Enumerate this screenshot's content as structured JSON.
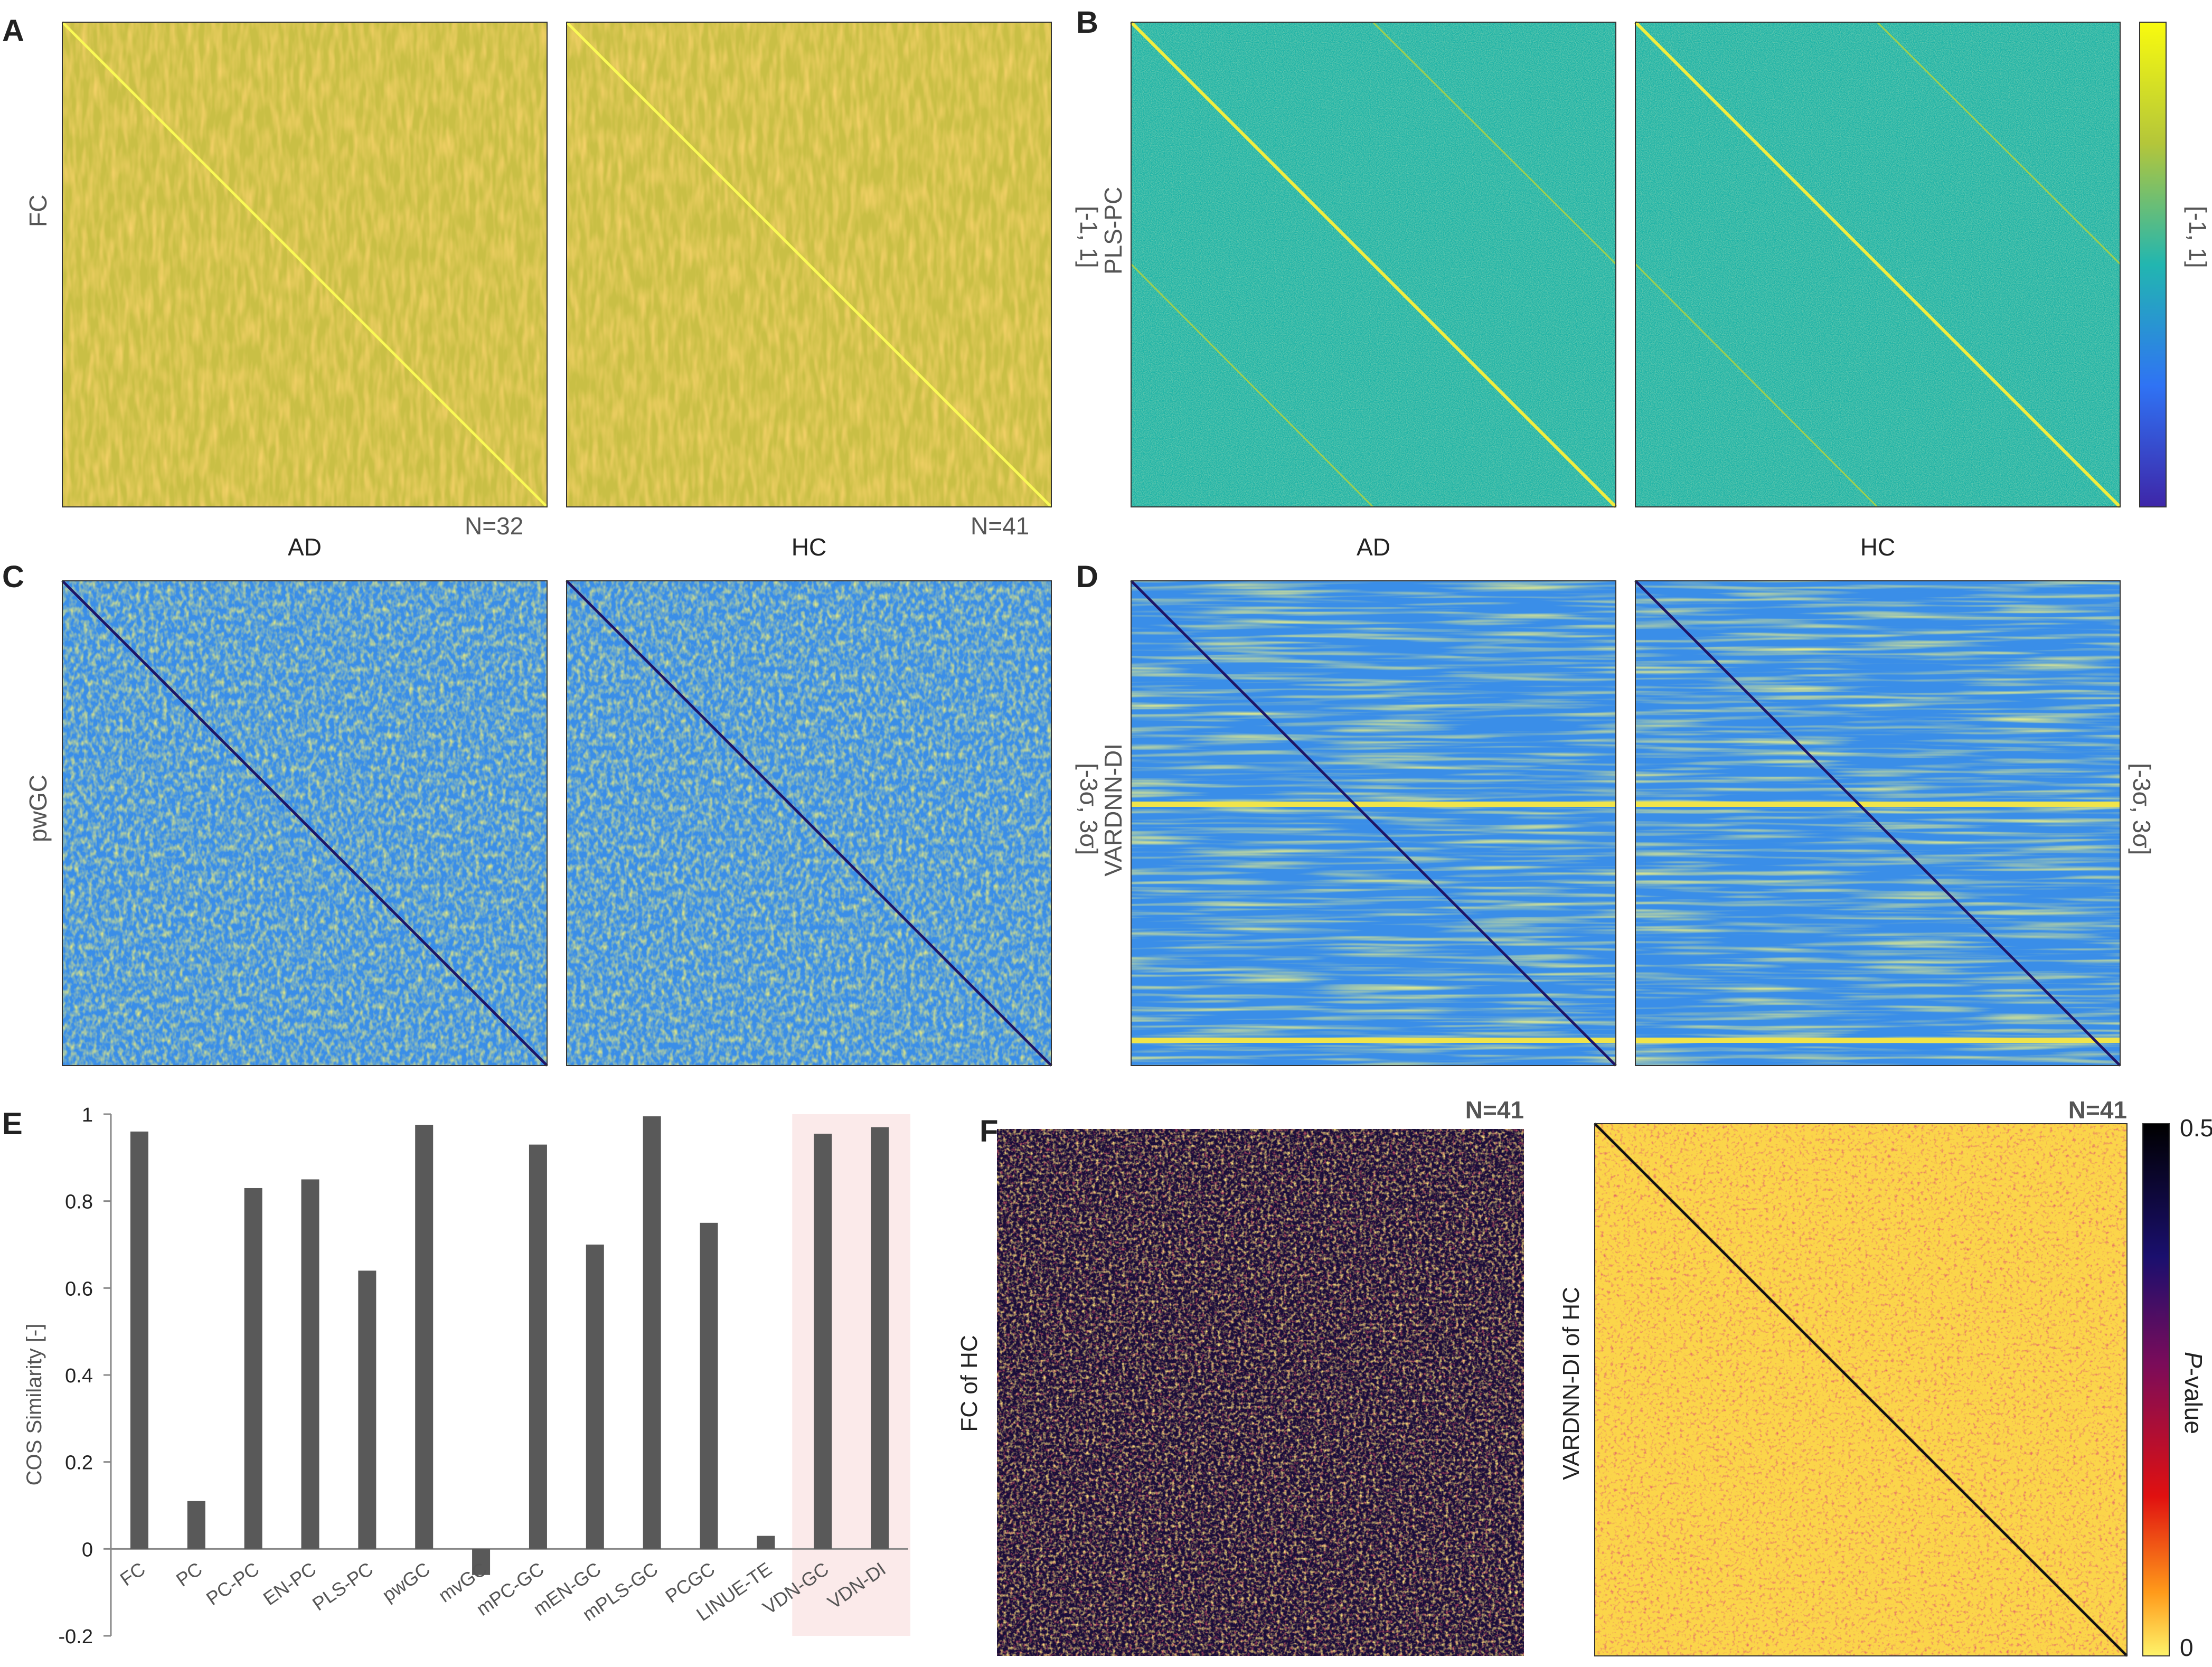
{
  "panels": {
    "A": {
      "letter": "A",
      "ylabel": "FC",
      "left_label": "AD",
      "right_label": "HC",
      "left_n": "N=32",
      "right_n": "N=41",
      "scale_label": "[-1, 1]"
    },
    "B": {
      "letter": "B",
      "ylabel": "PLS-PC",
      "left_label": "AD",
      "right_label": "HC",
      "scale_label": "[-1, 1]"
    },
    "C": {
      "letter": "C",
      "ylabel": "pwGC",
      "scale_label": "[-3σ, 3σ]"
    },
    "D": {
      "letter": "D",
      "ylabel": "VARDNN-DI",
      "scale_label": "[-3σ, 3σ]"
    },
    "E": {
      "letter": "E"
    },
    "F": {
      "letter": "F",
      "left_ylabel": "FC of HC",
      "right_ylabel": "VARDNN-DI of HC",
      "left_n": "N=41",
      "right_n": "N=41",
      "colorbar_max": "0.5",
      "colorbar_min": "0",
      "colorbar_label_italic": "P",
      "colorbar_label_rest": "-value"
    }
  },
  "colors": {
    "bar": "#595959",
    "highlight": "#fbeaea",
    "viridis_low": "#3b2a8f",
    "viridis_mid": "#21b3a0",
    "viridis_high": "#f9e51e"
  },
  "chart_data": {
    "type": "bar",
    "title": "",
    "xlabel": "",
    "ylabel": "COS Similarity [-]",
    "categories": [
      "FC",
      "PC",
      "PC-PC",
      "EN-PC",
      "PLS-PC",
      "pwGC",
      "mvGC",
      "mPC-GC",
      "mEN-GC",
      "mPLS-GC",
      "PCGC",
      "LINUE-TE",
      "VDN-GC",
      "VDN-DI"
    ],
    "values": [
      0.96,
      0.11,
      0.83,
      0.85,
      0.64,
      0.975,
      -0.06,
      0.93,
      0.7,
      0.995,
      0.75,
      0.03,
      0.955,
      0.97
    ],
    "ylim": [
      -0.2,
      1
    ],
    "yticks": [
      "1",
      "0.8",
      "0.6",
      "0.4",
      "0.2",
      "0",
      "-0.2"
    ],
    "highlighted": [
      "VDN-GC",
      "VDN-DI"
    ]
  }
}
